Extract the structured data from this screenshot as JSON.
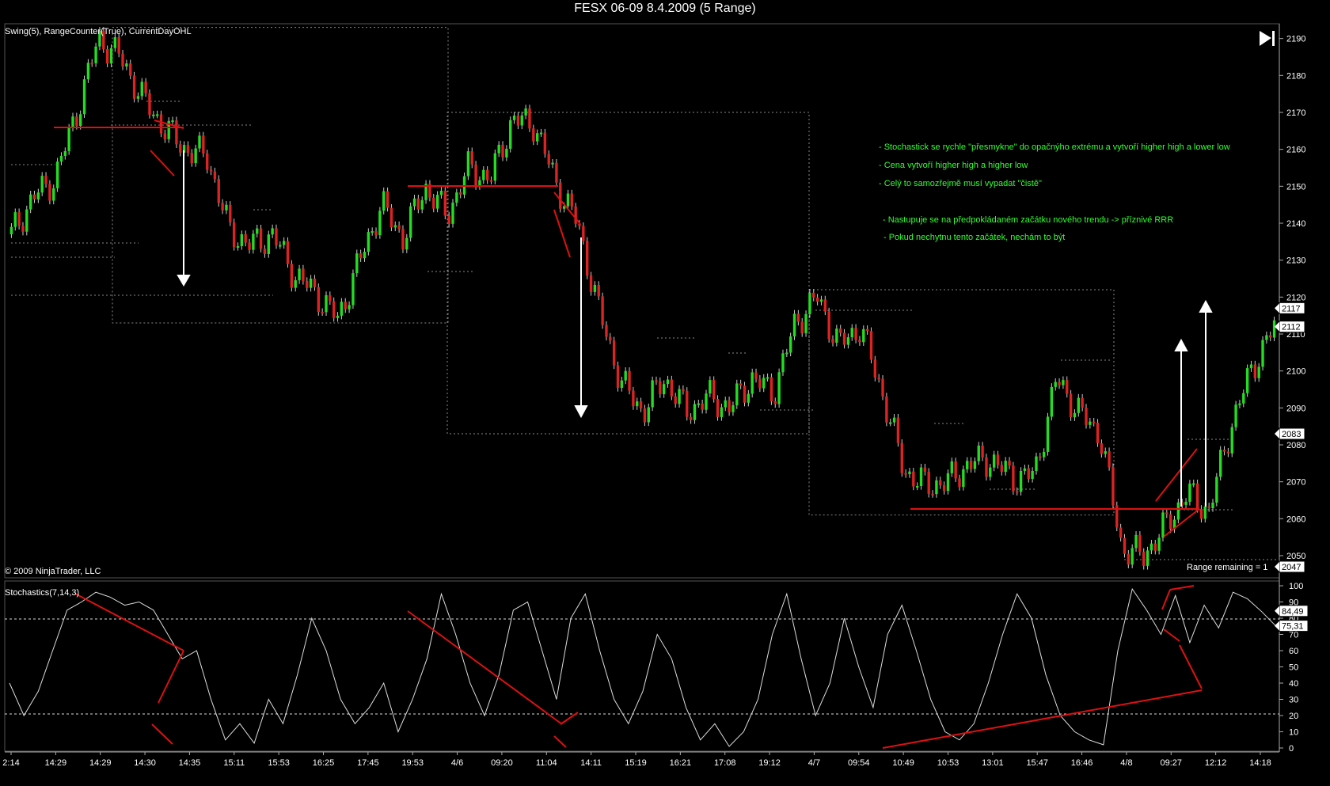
{
  "window_title": "FESX 06-09  8.4.2009 (5 Range)",
  "indicators_label": "Swing(5), RangeCounter(True), CurrentDayOHL",
  "copyright": "© 2009 NinjaTrader, LLC",
  "range_remaining": "Range remaining = 1",
  "stoch_label": "Stochastics(7,14,3)",
  "play_icon": "skip-to-end-icon",
  "notes": [
    "- Stochastick se rychle \"přesmykne\" do opačnýho extrému a vytvoří higher high a lower low",
    "- Cena vytvoří higher high a higher low",
    "- Celý to samozřejmě musí vypadat \"čistě\"",
    "- Nastupuje se na předpokládaném začátku nového trendu -> příznivé RRR",
    "- Pokud nechytnu tento začátek, nechám to být"
  ],
  "colors": {
    "up": "#22dd22",
    "down": "#dd2222",
    "annotation": "#dd1111",
    "notes": "#33ff33"
  },
  "chart_data": [
    {
      "type": "candlestick",
      "title": "FESX 06-09  8.4.2009 (5 Range)",
      "y_ticks": [
        2190,
        2180,
        2170,
        2160,
        2150,
        2140,
        2130,
        2120,
        2110,
        2100,
        2090,
        2080,
        2070,
        2060,
        2050
      ],
      "ylim": [
        2044,
        2194
      ],
      "price_markers": [
        "2117",
        "2112",
        "2083",
        "2047"
      ],
      "price_marker_values": [
        2117,
        2112,
        2083,
        2047
      ],
      "close_path": [
        2137,
        2147,
        2152,
        2170,
        2190,
        2185,
        2174,
        2166,
        2160,
        2158,
        2138,
        2134,
        2137,
        2126,
        2121,
        2114,
        2130,
        2145,
        2136,
        2150,
        2142,
        2155,
        2152,
        2168,
        2167,
        2151,
        2140,
        2116,
        2097,
        2089,
        2098,
        2089,
        2093,
        2090,
        2098,
        2094,
        2113,
        2120,
        2107,
        2112,
        2094,
        2073,
        2069,
        2070,
        2075,
        2076,
        2071,
        2072,
        2098,
        2089,
        2083,
        2052,
        2050,
        2058,
        2067,
        2062,
        2085,
        2101,
        2112
      ],
      "range_boxes": [
        {
          "high": 2193,
          "low": 2113
        },
        {
          "high": 2170,
          "low": 2083
        },
        {
          "high": 2122,
          "low": 2061
        }
      ]
    },
    {
      "type": "line",
      "name": "Stochastics(7,14,3)",
      "y_ticks": [
        100,
        90,
        80,
        70,
        60,
        50,
        40,
        30,
        20,
        10,
        0
      ],
      "ylim": [
        0,
        100
      ],
      "levels": [
        80,
        20
      ],
      "markers": [
        "84,49",
        "75,31"
      ],
      "marker_values": [
        84.49,
        75.31
      ],
      "values": [
        40,
        20,
        35,
        60,
        85,
        90,
        96,
        93,
        88,
        90,
        85,
        70,
        55,
        60,
        30,
        5,
        15,
        3,
        30,
        15,
        45,
        80,
        60,
        30,
        15,
        25,
        40,
        10,
        30,
        55,
        95,
        70,
        40,
        20,
        45,
        85,
        90,
        60,
        30,
        80,
        95,
        60,
        30,
        15,
        35,
        70,
        55,
        25,
        5,
        15,
        1,
        10,
        30,
        70,
        95,
        55,
        20,
        40,
        80,
        50,
        25,
        70,
        88,
        60,
        30,
        10,
        5,
        15,
        40,
        70,
        95,
        80,
        45,
        20,
        10,
        5,
        2,
        60,
        98,
        85,
        70,
        94,
        65,
        88,
        74,
        96,
        92,
        84,
        75
      ]
    }
  ],
  "x_labels": [
    "2:14",
    "14:29",
    "14:29",
    "14:30",
    "14:35",
    "15:11",
    "15:53",
    "16:25",
    "17:45",
    "19:53",
    "4/6",
    "09:20",
    "11:04",
    "14:11",
    "15:19",
    "16:21",
    "17:08",
    "19:12",
    "4/7",
    "09:54",
    "10:49",
    "10:53",
    "13:01",
    "15:47",
    "16:46",
    "4/8",
    "09:27",
    "12:12",
    "14:18"
  ]
}
